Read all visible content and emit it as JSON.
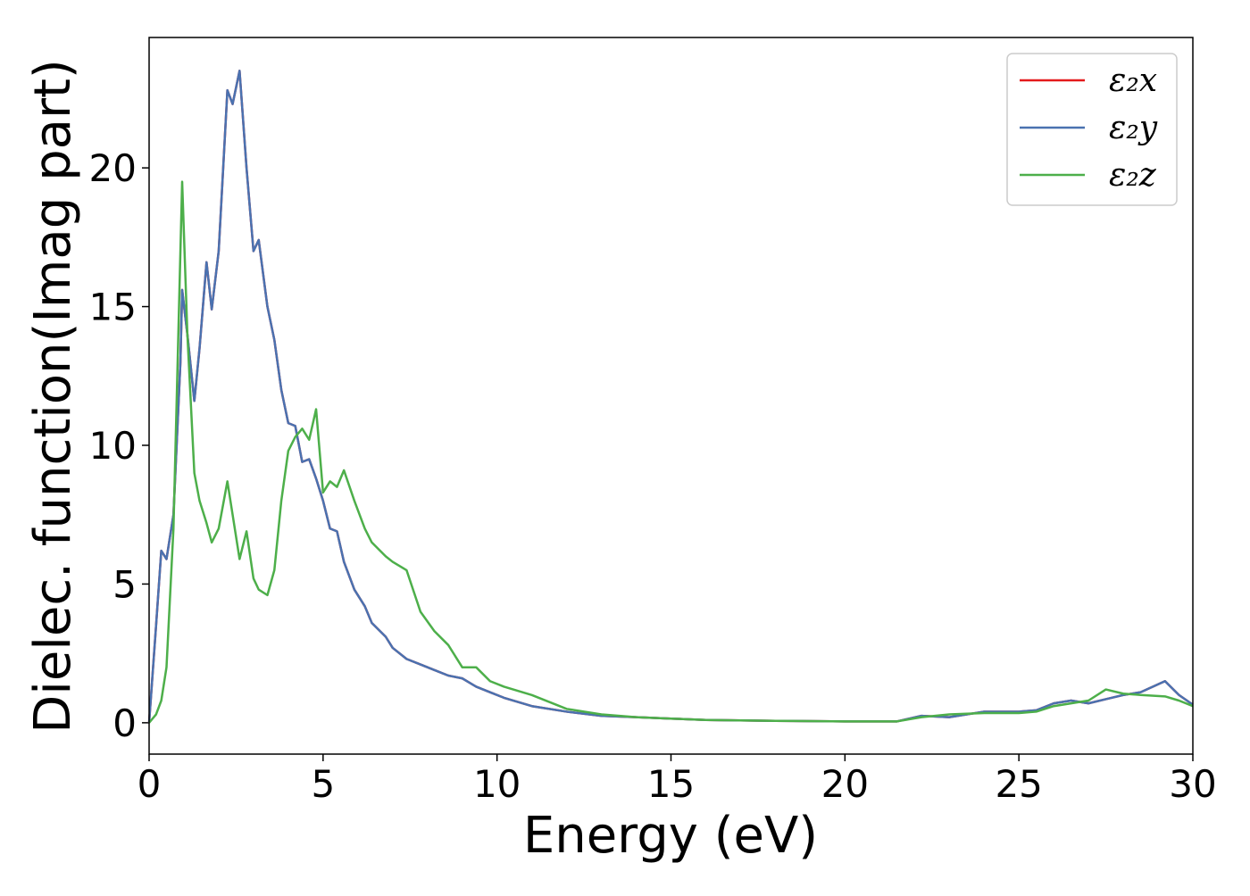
{
  "chart_data": {
    "type": "line",
    "xlabel": "Energy (eV)",
    "ylabel": "Dielec. function(Imag part)",
    "x": [
      0,
      0.2,
      0.35,
      0.5,
      0.7,
      0.9,
      0.95,
      1.1,
      1.3,
      1.45,
      1.65,
      1.8,
      2.0,
      2.25,
      2.4,
      2.6,
      2.8,
      3.0,
      3.15,
      3.4,
      3.6,
      3.8,
      4.0,
      4.2,
      4.4,
      4.6,
      4.8,
      5.0,
      5.2,
      5.4,
      5.6,
      5.9,
      6.2,
      6.4,
      6.8,
      7.0,
      7.4,
      7.8,
      8.2,
      8.6,
      9.0,
      9.4,
      9.8,
      10.2,
      11,
      12,
      13,
      14,
      15,
      16,
      18,
      20,
      21.5,
      22.2,
      23,
      24,
      25,
      25.5,
      26,
      26.5,
      27,
      27.5,
      28,
      28.5,
      29.2,
      29.6,
      30
    ],
    "series": [
      {
        "name": "ε₂x",
        "color": "#e41a1c",
        "values": [
          0,
          3.5,
          6.2,
          5.9,
          7.5,
          13,
          15.6,
          14,
          11.6,
          13.5,
          16.6,
          14.9,
          17,
          22.8,
          22.3,
          23.5,
          20,
          17,
          17.4,
          15,
          13.8,
          12,
          10.8,
          10.7,
          9.4,
          9.5,
          8.8,
          8,
          7,
          6.9,
          5.8,
          4.8,
          4.2,
          3.6,
          3.1,
          2.7,
          2.3,
          2.1,
          1.9,
          1.7,
          1.6,
          1.3,
          1.1,
          0.9,
          0.6,
          0.4,
          0.25,
          0.2,
          0.15,
          0.1,
          0.07,
          0.05,
          0.05,
          0.25,
          0.2,
          0.4,
          0.4,
          0.45,
          0.7,
          0.8,
          0.7,
          0.85,
          1.0,
          1.1,
          1.5,
          1.0,
          0.65
        ]
      },
      {
        "name": "ε₂y",
        "color": "#4a72b0",
        "values": [
          0,
          3.5,
          6.2,
          5.9,
          7.5,
          13,
          15.6,
          14,
          11.6,
          13.5,
          16.6,
          14.9,
          17,
          22.8,
          22.3,
          23.5,
          20,
          17,
          17.4,
          15,
          13.8,
          12,
          10.8,
          10.7,
          9.4,
          9.5,
          8.8,
          8,
          7,
          6.9,
          5.8,
          4.8,
          4.2,
          3.6,
          3.1,
          2.7,
          2.3,
          2.1,
          1.9,
          1.7,
          1.6,
          1.3,
          1.1,
          0.9,
          0.6,
          0.4,
          0.25,
          0.2,
          0.15,
          0.1,
          0.07,
          0.05,
          0.05,
          0.25,
          0.2,
          0.4,
          0.4,
          0.45,
          0.7,
          0.8,
          0.7,
          0.85,
          1.0,
          1.1,
          1.5,
          1.0,
          0.65
        ]
      },
      {
        "name": "ε₂z",
        "color": "#4daf4a",
        "values": [
          0,
          0.3,
          0.8,
          2,
          7,
          17,
          19.5,
          14,
          9,
          8,
          7.2,
          6.5,
          7,
          8.7,
          7.5,
          5.9,
          6.9,
          5.2,
          4.8,
          4.6,
          5.5,
          8,
          9.8,
          10.3,
          10.6,
          10.2,
          11.3,
          8.3,
          8.7,
          8.5,
          9.1,
          8,
          7,
          6.5,
          6,
          5.8,
          5.5,
          4,
          3.3,
          2.8,
          2,
          2,
          1.5,
          1.3,
          1,
          0.5,
          0.3,
          0.2,
          0.15,
          0.1,
          0.07,
          0.05,
          0.05,
          0.2,
          0.3,
          0.35,
          0.35,
          0.4,
          0.6,
          0.7,
          0.8,
          1.2,
          1.05,
          1.0,
          0.95,
          0.8,
          0.6
        ]
      }
    ],
    "xlim": [
      0,
      30
    ],
    "xticks": [
      0,
      5,
      10,
      15,
      20,
      25,
      30
    ],
    "ylim": [
      -1.13,
      24.7
    ],
    "yticks": [
      0,
      5,
      10,
      15,
      20
    ],
    "legend": "upper right"
  }
}
